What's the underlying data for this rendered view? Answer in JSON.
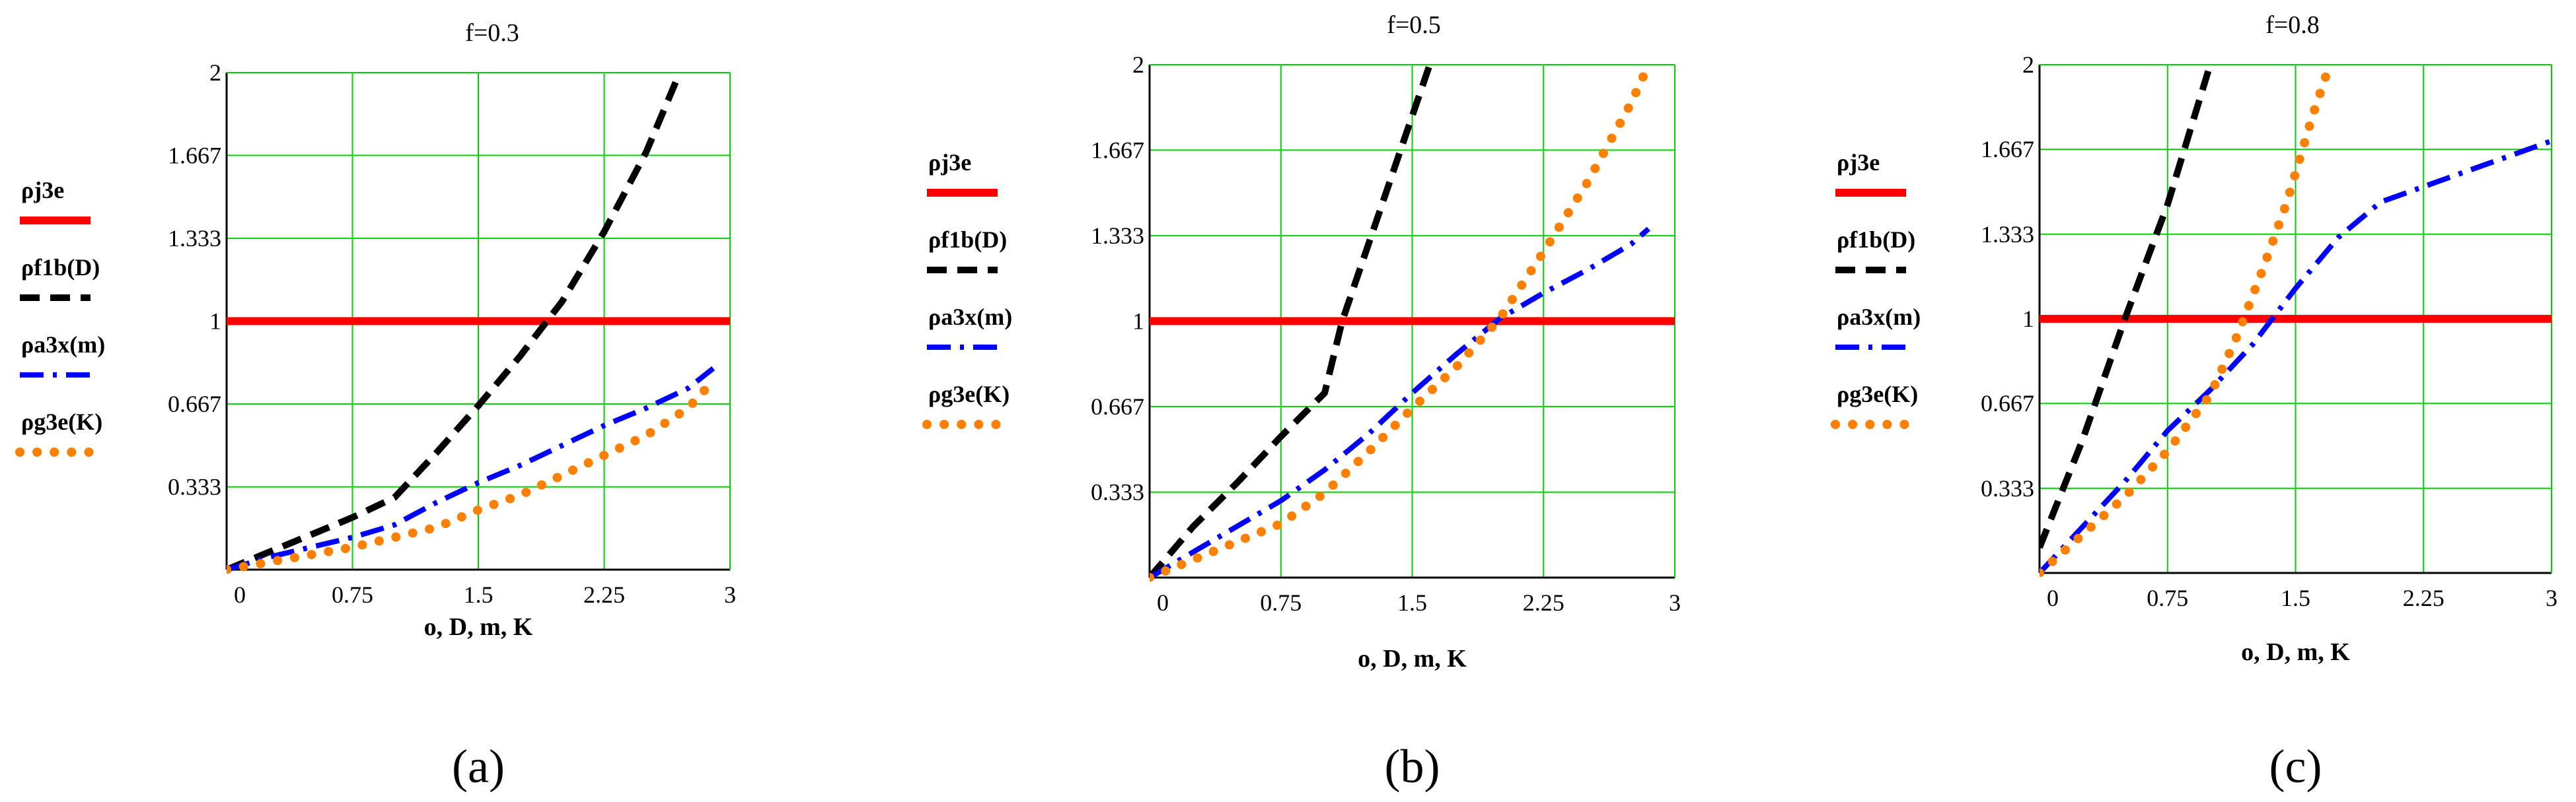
{
  "chart_data": [
    {
      "type": "line",
      "title": "f=0.3",
      "caption": "(a)",
      "xlabel": "o, D, m, K",
      "xlim": [
        0,
        3
      ],
      "ylim": [
        0,
        2
      ],
      "xticks": [
        "0",
        "0.75",
        "1.5",
        "2.25",
        "3"
      ],
      "yticks": [
        "0.333",
        "0.667",
        "1",
        "1.333",
        "1.667",
        "2"
      ],
      "grid": true,
      "legend_position": "left",
      "series": [
        {
          "name": "ρj3e",
          "color": "#ff0000",
          "style": "solid",
          "x": [
            0,
            3
          ],
          "y": [
            1,
            1
          ]
        },
        {
          "name": "ρf1b(D)",
          "color": "#000000",
          "style": "dash",
          "x": [
            0,
            0.25,
            0.5,
            0.75,
            1.0,
            1.25,
            1.5,
            1.75,
            2.0,
            2.25,
            2.5,
            2.7
          ],
          "y": [
            0,
            0.07,
            0.14,
            0.21,
            0.29,
            0.47,
            0.66,
            0.86,
            1.08,
            1.36,
            1.68,
            2.0
          ]
        },
        {
          "name": "ρa3x(m)",
          "color": "#0000ff",
          "style": "dashdot",
          "x": [
            0,
            0.25,
            0.5,
            0.75,
            1.0,
            1.25,
            1.5,
            1.75,
            2.0,
            2.25,
            2.5,
            2.75,
            2.9
          ],
          "y": [
            0,
            0.05,
            0.09,
            0.13,
            0.18,
            0.27,
            0.35,
            0.42,
            0.5,
            0.58,
            0.65,
            0.73,
            0.81
          ]
        },
        {
          "name": "ρg3e(K)",
          "color": "#ff8000",
          "style": "dot",
          "x": [
            0,
            0.25,
            0.5,
            0.75,
            1.0,
            1.25,
            1.5,
            1.75,
            2.0,
            2.25,
            2.5,
            2.75,
            2.9
          ],
          "y": [
            0,
            0.03,
            0.06,
            0.09,
            0.13,
            0.17,
            0.24,
            0.3,
            0.38,
            0.46,
            0.54,
            0.65,
            0.76
          ]
        }
      ]
    },
    {
      "type": "line",
      "title": "f=0.5",
      "caption": "(b)",
      "xlabel": "o, D, m, K",
      "xlim": [
        0,
        3
      ],
      "ylim": [
        0,
        2
      ],
      "xticks": [
        "0",
        "0.75",
        "1.5",
        "2.25",
        "3"
      ],
      "yticks": [
        "0.333",
        "0.667",
        "1",
        "1.333",
        "1.667",
        "2"
      ],
      "grid": true,
      "legend_position": "left",
      "series": [
        {
          "name": "ρj3e",
          "color": "#ff0000",
          "style": "solid",
          "x": [
            0,
            3
          ],
          "y": [
            1,
            1
          ]
        },
        {
          "name": "ρf1b(D)",
          "color": "#000000",
          "style": "dash",
          "x": [
            0,
            0.25,
            0.5,
            0.75,
            1.0,
            1.1,
            1.25,
            1.4,
            1.5,
            1.6
          ],
          "y": [
            0,
            0.2,
            0.37,
            0.55,
            0.72,
            1.0,
            1.3,
            1.6,
            1.8,
            2.0
          ]
        },
        {
          "name": "ρa3x(m)",
          "color": "#0000ff",
          "style": "dashdot",
          "x": [
            0,
            0.25,
            0.5,
            0.75,
            1.0,
            1.25,
            1.5,
            1.75,
            2.0,
            2.25,
            2.5,
            2.75,
            2.85
          ],
          "y": [
            0,
            0.1,
            0.2,
            0.3,
            0.42,
            0.56,
            0.72,
            0.87,
            1.01,
            1.11,
            1.2,
            1.3,
            1.36
          ]
        },
        {
          "name": "ρg3e(K)",
          "color": "#ff8000",
          "style": "dot",
          "x": [
            0,
            0.25,
            0.5,
            0.75,
            1.0,
            1.25,
            1.5,
            1.75,
            2.0,
            2.25,
            2.5,
            2.75,
            2.85
          ],
          "y": [
            0,
            0.07,
            0.14,
            0.21,
            0.33,
            0.49,
            0.66,
            0.82,
            1.01,
            1.27,
            1.54,
            1.85,
            2.0
          ]
        }
      ]
    },
    {
      "type": "line",
      "title": "f=0.8",
      "caption": "(c)",
      "xlabel": "o, D, m, K",
      "xlim": [
        0,
        3
      ],
      "ylim": [
        0,
        2
      ],
      "xticks": [
        "0",
        "0.75",
        "1.5",
        "2.25",
        "3"
      ],
      "yticks": [
        "0.333",
        "0.667",
        "1",
        "1.333",
        "1.667",
        "2"
      ],
      "grid": true,
      "legend_position": "left",
      "series": [
        {
          "name": "ρj3e",
          "color": "#ff0000",
          "style": "solid",
          "x": [
            0,
            3
          ],
          "y": [
            1,
            1
          ]
        },
        {
          "name": "ρf1b(D)",
          "color": "#000000",
          "style": "dash",
          "x": [
            0,
            0.25,
            0.5,
            0.75,
            0.9,
            1.0
          ],
          "y": [
            0.1,
            0.52,
            1.0,
            1.45,
            1.78,
            2.0
          ]
        },
        {
          "name": "ρa3x(m)",
          "color": "#0000ff",
          "style": "dashdot",
          "x": [
            0,
            0.25,
            0.5,
            0.75,
            1.0,
            1.25,
            1.5,
            1.75,
            2.0,
            2.25,
            2.5,
            2.75,
            3.0
          ],
          "y": [
            0,
            0.18,
            0.36,
            0.56,
            0.72,
            0.9,
            1.12,
            1.32,
            1.46,
            1.52,
            1.58,
            1.64,
            1.7
          ]
        },
        {
          "name": "ρg3e(K)",
          "color": "#ff8000",
          "style": "dot",
          "x": [
            0,
            0.25,
            0.5,
            0.75,
            1.0,
            1.15,
            1.3,
            1.45,
            1.6,
            1.7
          ],
          "y": [
            0,
            0.15,
            0.3,
            0.48,
            0.7,
            0.92,
            1.18,
            1.46,
            1.8,
            2.0
          ]
        }
      ]
    }
  ]
}
